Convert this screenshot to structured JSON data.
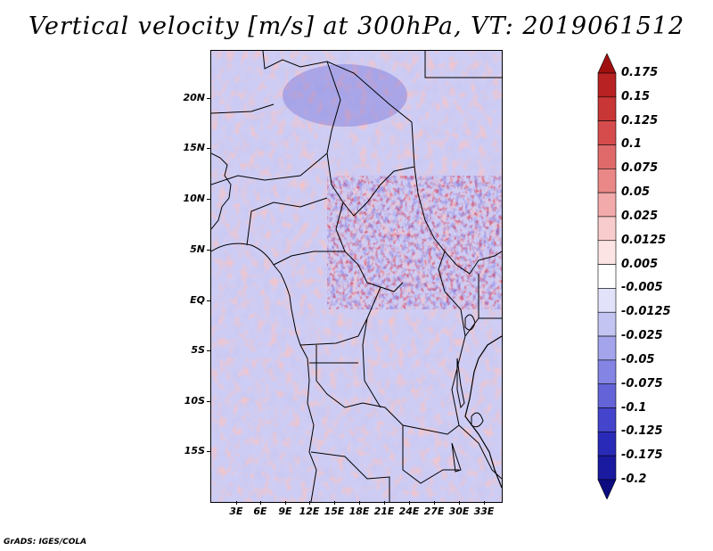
{
  "title": "Vertical velocity [m/s] at 300hPa, VT: 2019061512",
  "credit": "GrADS: IGES/COLA",
  "map": {
    "lat_labels": [
      "20N",
      "15N",
      "10N",
      "5N",
      "EQ",
      "5S",
      "10S",
      "15S"
    ],
    "lon_labels": [
      "3E",
      "6E",
      "9E",
      "12E",
      "15E",
      "18E",
      "21E",
      "24E",
      "27E",
      "30E",
      "33E"
    ],
    "field": "vertical velocity",
    "colors": {
      "positive": "#c81e1e",
      "negative": "#2a22c4"
    }
  },
  "colorbar": {
    "levels": [
      "0.175",
      "0.15",
      "0.125",
      "0.1",
      "0.075",
      "0.05",
      "0.025",
      "0.0125",
      "0.005",
      "-0.005",
      "-0.0125",
      "-0.025",
      "-0.05",
      "-0.075",
      "-0.1",
      "-0.125",
      "-0.175",
      "-0.2"
    ],
    "colors": [
      "#a01010",
      "#b82222",
      "#c83636",
      "#d64c4c",
      "#e06a6a",
      "#ea8888",
      "#f2aaaa",
      "#f8cccc",
      "#fce4e4",
      "#ffffff",
      "#e2e2fa",
      "#c4c4f2",
      "#a4a4ec",
      "#8484e4",
      "#6464d8",
      "#4444cc",
      "#2a2ab8",
      "#1a1aa0",
      "#0c0c80"
    ]
  }
}
